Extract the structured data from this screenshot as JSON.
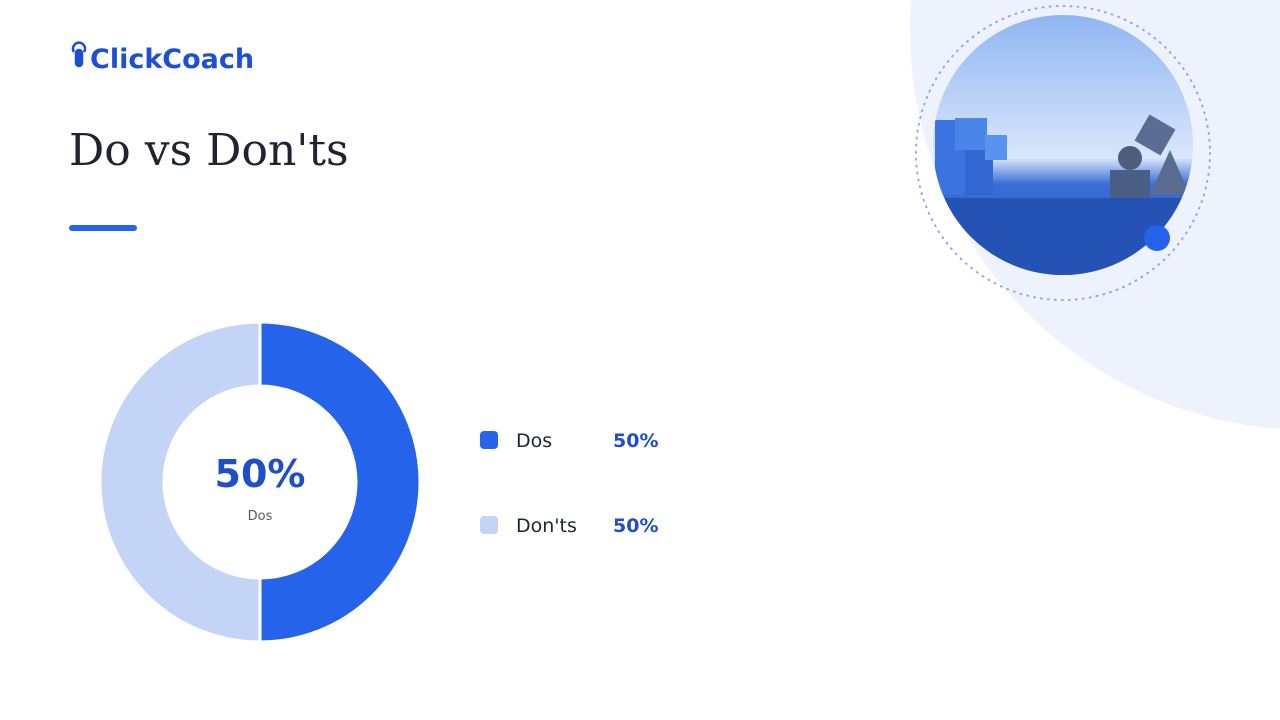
{
  "logo": "ClickCoach",
  "chart_data": {
    "type": "donut",
    "title": "Do vs Don'ts",
    "categories": [
      "Dos",
      "Don'ts"
    ],
    "values": [
      50,
      50
    ],
    "value_labels": [
      "50%",
      "50%"
    ],
    "colors": [
      "#2563eb",
      "#c3d4f7"
    ]
  }
}
